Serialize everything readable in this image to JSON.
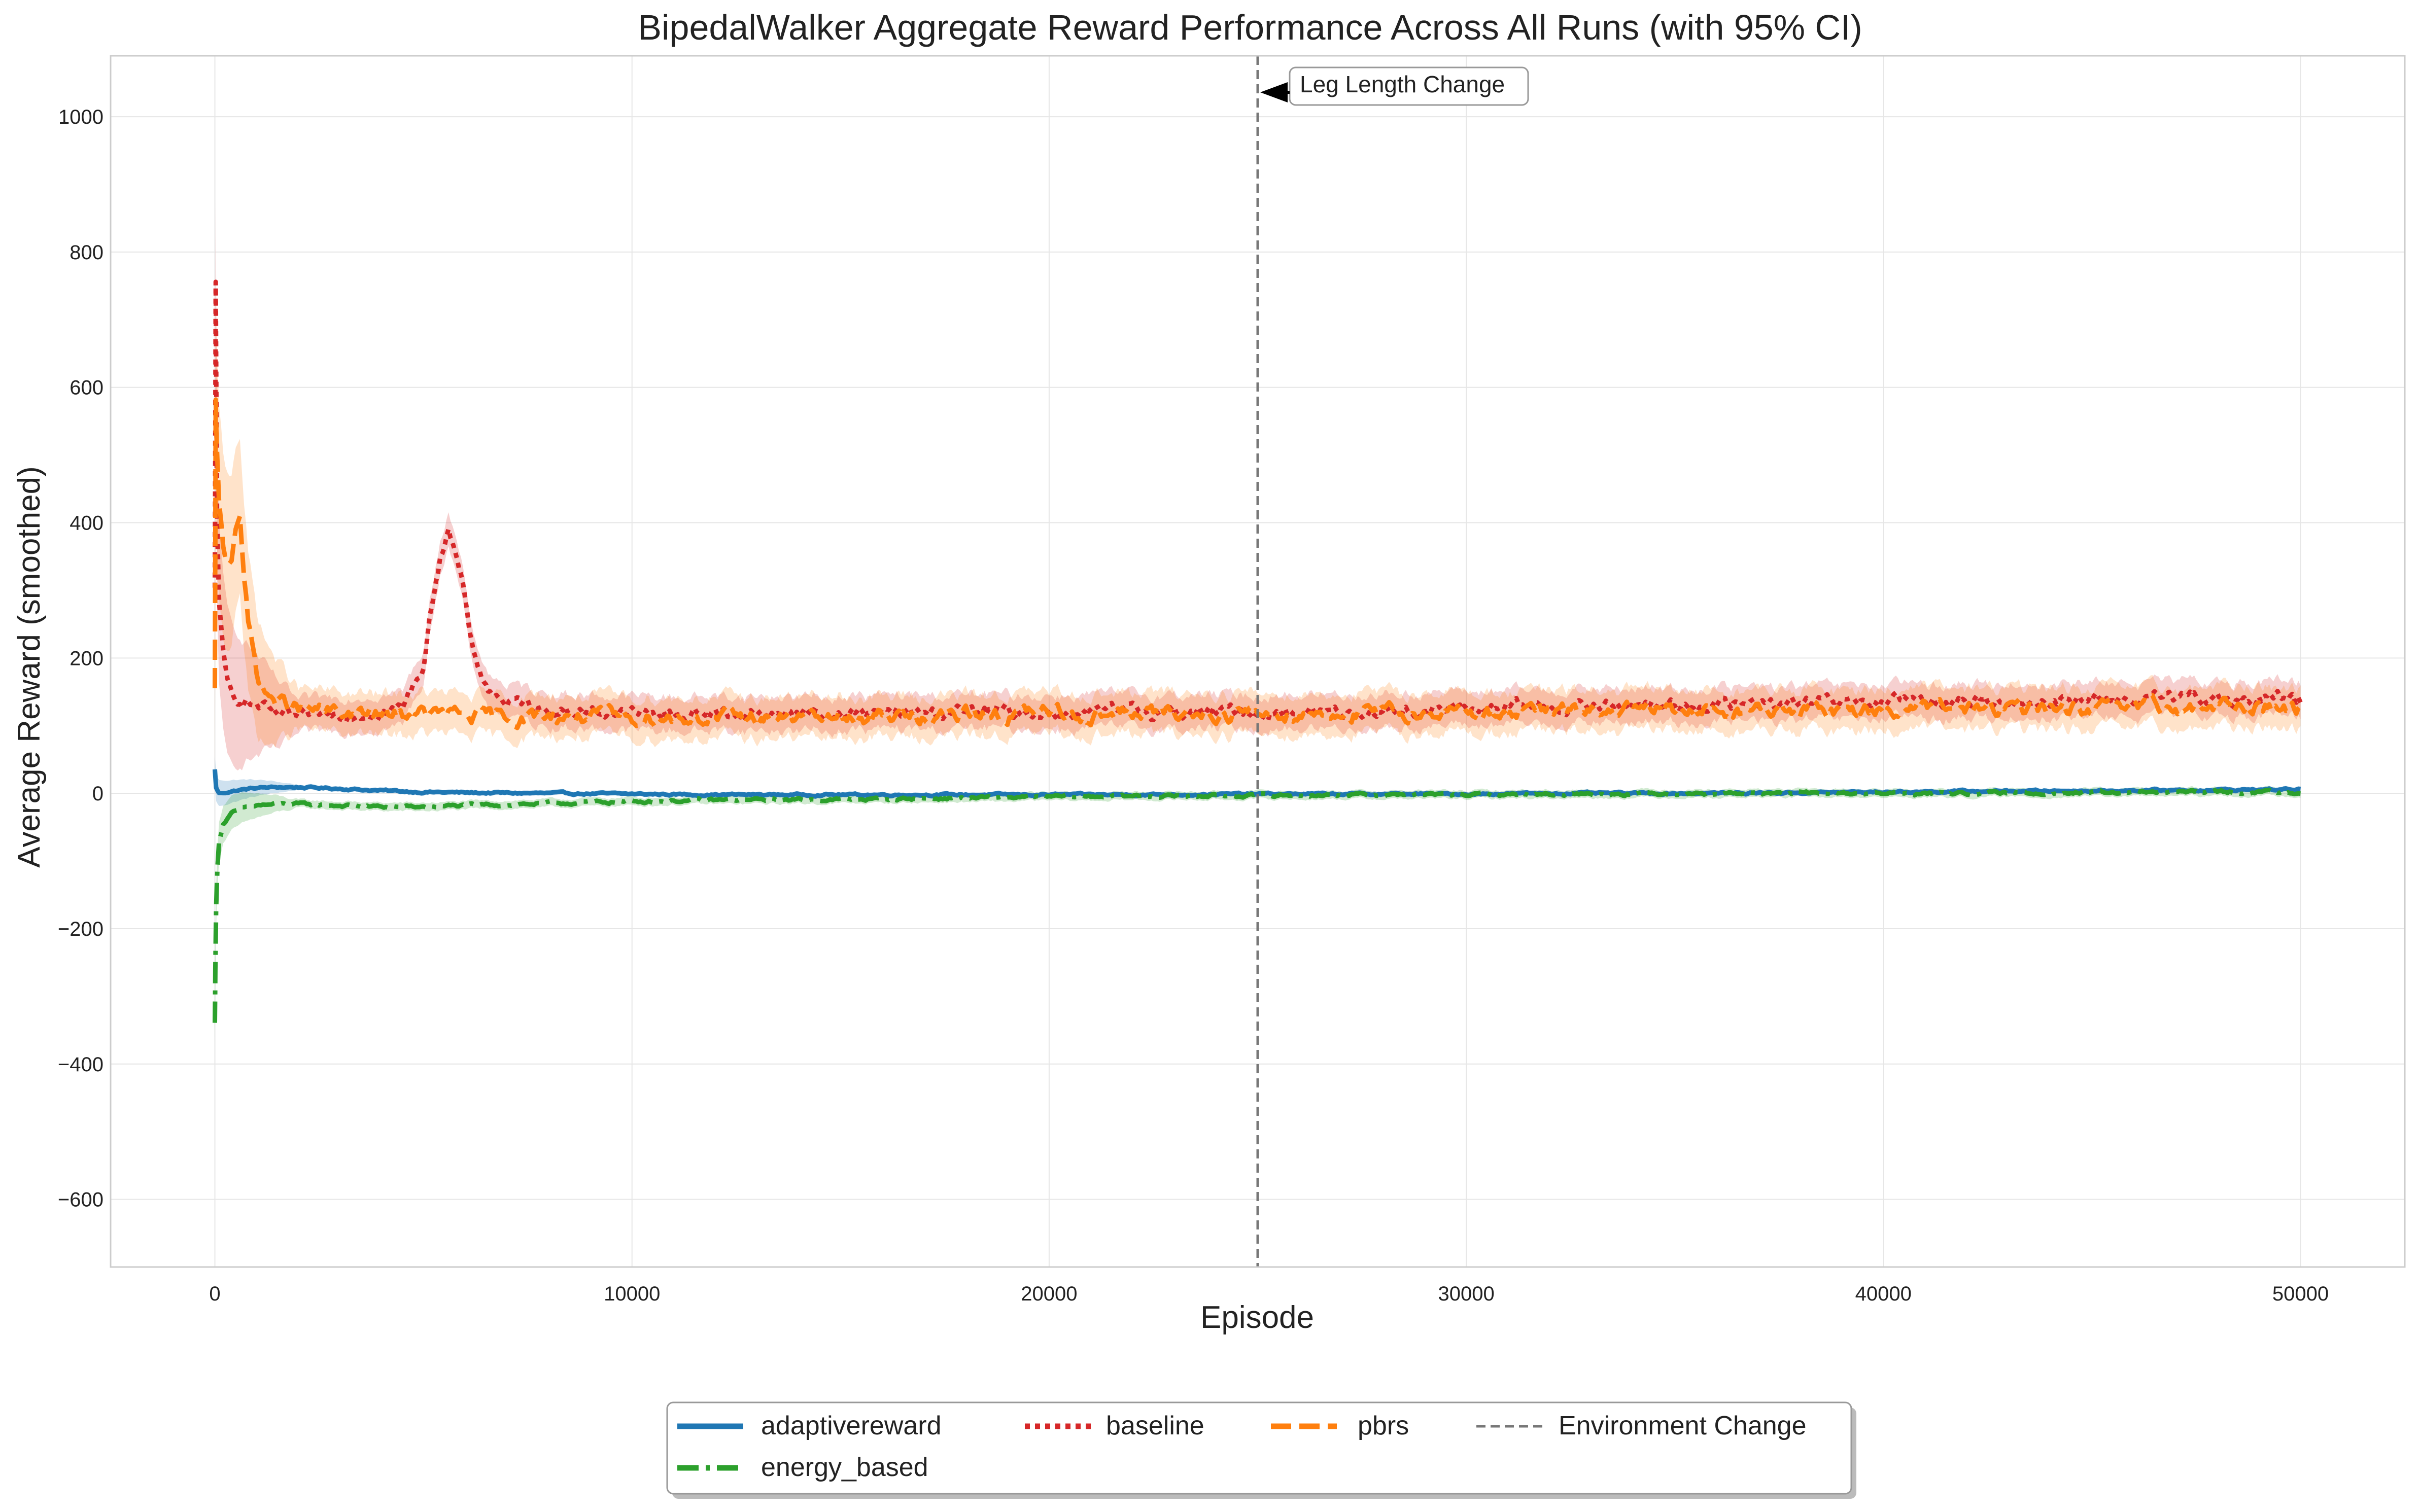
{
  "chart_data": {
    "type": "line",
    "title": "BipedalWalker Aggregate Reward Performance Across All Runs (with 95% CI)",
    "xlabel": "Episode",
    "ylabel": "Average Reward (smoothed)",
    "xlim": [
      -2500,
      52500
    ],
    "ylim": [
      -700,
      1090
    ],
    "xticks": [
      0,
      10000,
      20000,
      30000,
      40000,
      50000
    ],
    "xtick_labels": [
      "0",
      "10000",
      "20000",
      "30000",
      "40000",
      "50000"
    ],
    "yticks": [
      -600,
      -400,
      -200,
      0,
      200,
      400,
      600,
      800,
      1000
    ],
    "ytick_labels": [
      "−600",
      "−400",
      "−200",
      "0",
      "200",
      "400",
      "600",
      "800",
      "1000"
    ],
    "grid": true,
    "legend_position": "bottom-center",
    "environment_change": {
      "x": 25000,
      "legend_label": "Environment Change",
      "annotation": "Leg Length Change",
      "annotation_y": 1040
    },
    "series": [
      {
        "name": "adaptivereward",
        "color": "#1f77b4",
        "dash": "solid",
        "ci_halfwidth": 4,
        "x": [
          0,
          30,
          100,
          300,
          600,
          1000,
          1500,
          2000,
          3000,
          4000,
          5000,
          6000,
          8000,
          10000,
          12000,
          15000,
          18000,
          20000,
          22000,
          25000,
          28000,
          30000,
          32000,
          35000,
          38000,
          40000,
          42000,
          45000,
          48000,
          50000
        ],
        "y": [
          35,
          8,
          0,
          2,
          5,
          8,
          9,
          9,
          7,
          4,
          2,
          1,
          0,
          -1,
          -2,
          -2,
          -2,
          -2,
          -2,
          -1,
          -1,
          -1,
          0,
          0,
          1,
          2,
          3,
          4,
          5,
          6
        ]
      },
      {
        "name": "energy_based",
        "color": "#2ca02c",
        "dash": "dashdot",
        "ci_halfwidth": 6,
        "x": [
          0,
          10,
          30,
          60,
          100,
          200,
          400,
          700,
          1000,
          1500,
          2000,
          3000,
          4000,
          5000,
          6000,
          8000,
          10000,
          12000,
          15000,
          18000,
          20000,
          22000,
          25000,
          28000,
          30000,
          32000,
          35000,
          38000,
          40000,
          42000,
          45000,
          48000,
          50000
        ],
        "y": [
          -340,
          -260,
          -170,
          -110,
          -70,
          -45,
          -30,
          -22,
          -18,
          -16,
          -16,
          -18,
          -20,
          -20,
          -18,
          -15,
          -12,
          -10,
          -9,
          -7,
          -5,
          -4,
          -3,
          -2,
          -2,
          -1,
          0,
          0,
          0,
          0,
          1,
          2,
          2
        ]
      },
      {
        "name": "baseline",
        "color": "#d62728",
        "dash": "dotted",
        "ci_halfwidth": 25,
        "x": [
          0,
          20,
          50,
          100,
          200,
          300,
          400,
          600,
          1000,
          1500,
          2000,
          3000,
          4000,
          4500,
          5000,
          5300,
          5600,
          5900,
          6200,
          6600,
          7000,
          8000,
          9000,
          10000,
          12000,
          15000,
          18000,
          20000,
          22000,
          25000,
          28000,
          30000,
          32000,
          35000,
          38000,
          40000,
          42000,
          45000,
          48000,
          50000
        ],
        "y": [
          300,
          750,
          420,
          280,
          200,
          160,
          145,
          140,
          130,
          115,
          110,
          118,
          122,
          125,
          190,
          320,
          400,
          320,
          200,
          150,
          135,
          125,
          120,
          118,
          118,
          118,
          120,
          120,
          121,
          120,
          122,
          125,
          128,
          130,
          132,
          135,
          136,
          138,
          140,
          140
        ]
      },
      {
        "name": "pbrs",
        "color": "#ff7f0e",
        "dash": "dashed",
        "ci_halfwidth": 30,
        "x": [
          0,
          20,
          50,
          100,
          200,
          300,
          400,
          500,
          600,
          700,
          800,
          1000,
          1200,
          1500,
          2000,
          3000,
          4000,
          5000,
          6000,
          7000,
          8000,
          10000,
          12000,
          15000,
          18000,
          20000,
          22000,
          25000,
          28000,
          30000,
          32000,
          35000,
          38000,
          40000,
          42000,
          45000,
          48000,
          50000
        ],
        "y": [
          150,
          570,
          500,
          420,
          360,
          340,
          350,
          400,
          420,
          320,
          250,
          180,
          150,
          135,
          125,
          118,
          115,
          118,
          115,
          112,
          115,
          112,
          112,
          112,
          115,
          118,
          118,
          118,
          118,
          120,
          120,
          122,
          122,
          125,
          125,
          125,
          127,
          128
        ]
      }
    ]
  }
}
